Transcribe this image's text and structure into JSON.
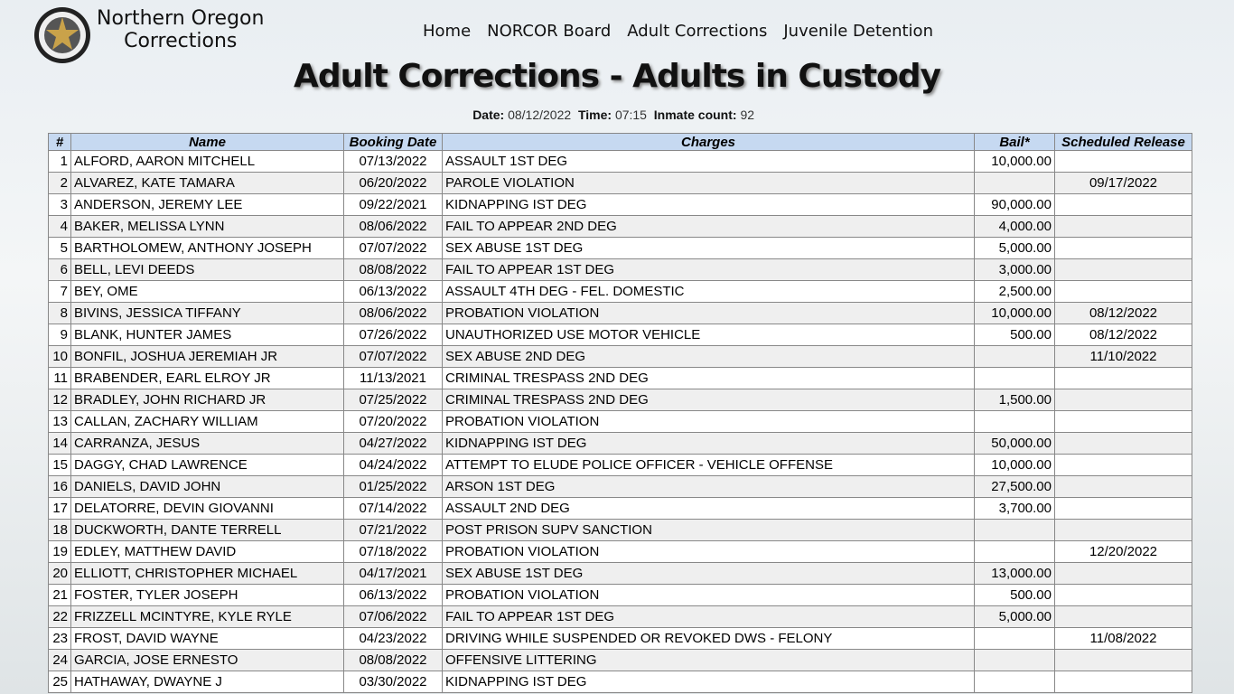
{
  "header": {
    "site_name": [
      "Northern Oregon",
      "Corrections"
    ],
    "nav": [
      "Home",
      "NORCOR Board",
      "Adult Corrections",
      "Juvenile Detention"
    ]
  },
  "title": "Adult Corrections - Adults in Custody",
  "meta": [
    {
      "label": "Date:",
      "value": "08/12/2022"
    },
    {
      "label": "Time:",
      "value": "07:15"
    },
    {
      "label": "Inmate count:",
      "value": "92"
    }
  ],
  "table": {
    "columns": [
      "#",
      "Name",
      "Booking Date",
      "Charges",
      "Bail*",
      "Scheduled Release"
    ],
    "rows": [
      [
        "1",
        "ALFORD, AARON MITCHELL",
        "07/13/2022",
        "ASSAULT 1ST DEG",
        "10,000.00",
        null
      ],
      [
        "2",
        "ALVAREZ, KATE TAMARA",
        "06/20/2022",
        "PAROLE VIOLATION",
        null,
        "09/17/2022"
      ],
      [
        "3",
        "ANDERSON, JEREMY LEE",
        "09/22/2021",
        "KIDNAPPING IST DEG",
        "90,000.00",
        null
      ],
      [
        "4",
        "BAKER, MELISSA LYNN",
        "08/06/2022",
        "FAIL TO APPEAR 2ND DEG",
        "4,000.00",
        null
      ],
      [
        "5",
        "BARTHOLOMEW, ANTHONY JOSEPH",
        "07/07/2022",
        "SEX ABUSE 1ST DEG",
        "5,000.00",
        null
      ],
      [
        "6",
        "BELL, LEVI DEEDS",
        "08/08/2022",
        "FAIL TO APPEAR 1ST DEG",
        "3,000.00",
        null
      ],
      [
        "7",
        "BEY, OME",
        "06/13/2022",
        "ASSAULT 4TH DEG - FEL. DOMESTIC",
        "2,500.00",
        null
      ],
      [
        "8",
        "BIVINS, JESSICA TIFFANY",
        "08/06/2022",
        "PROBATION VIOLATION",
        "10,000.00",
        "08/12/2022"
      ],
      [
        "9",
        "BLANK, HUNTER JAMES",
        "07/26/2022",
        "UNAUTHORIZED USE MOTOR VEHICLE",
        "500.00",
        "08/12/2022"
      ],
      [
        "10",
        "BONFIL, JOSHUA JEREMIAH JR",
        "07/07/2022",
        "SEX ABUSE 2ND DEG",
        null,
        "11/10/2022"
      ],
      [
        "11",
        "BRABENDER, EARL ELROY JR",
        "11/13/2021",
        "CRIMINAL TRESPASS 2ND DEG",
        null,
        null
      ],
      [
        "12",
        "BRADLEY, JOHN RICHARD JR",
        "07/25/2022",
        "CRIMINAL TRESPASS 2ND DEG",
        "1,500.00",
        null
      ],
      [
        "13",
        "CALLAN, ZACHARY WILLIAM",
        "07/20/2022",
        "PROBATION VIOLATION",
        null,
        null
      ],
      [
        "14",
        "CARRANZA, JESUS",
        "04/27/2022",
        "KIDNAPPING IST DEG",
        "50,000.00",
        null
      ],
      [
        "15",
        "DAGGY, CHAD LAWRENCE",
        "04/24/2022",
        "ATTEMPT TO ELUDE POLICE OFFICER - VEHICLE OFFENSE",
        "10,000.00",
        null
      ],
      [
        "16",
        "DANIELS, DAVID JOHN",
        "01/25/2022",
        "ARSON 1ST DEG",
        "27,500.00",
        null
      ],
      [
        "17",
        "DELATORRE, DEVIN GIOVANNI",
        "07/14/2022",
        "ASSAULT 2ND DEG",
        "3,700.00",
        null
      ],
      [
        "18",
        "DUCKWORTH, DANTE TERRELL",
        "07/21/2022",
        "POST PRISON SUPV SANCTION",
        null,
        null
      ],
      [
        "19",
        "EDLEY, MATTHEW DAVID",
        "07/18/2022",
        "PROBATION VIOLATION",
        null,
        "12/20/2022"
      ],
      [
        "20",
        "ELLIOTT, CHRISTOPHER MICHAEL",
        "04/17/2021",
        "SEX ABUSE 1ST DEG",
        "13,000.00",
        null
      ],
      [
        "21",
        "FOSTER, TYLER JOSEPH",
        "06/13/2022",
        "PROBATION VIOLATION",
        "500.00",
        null
      ],
      [
        "22",
        "FRIZZELL MCINTYRE, KYLE RYLE",
        "07/06/2022",
        "FAIL TO APPEAR 1ST DEG",
        "5,000.00",
        null
      ],
      [
        "23",
        "FROST, DAVID WAYNE",
        "04/23/2022",
        "DRIVING WHILE SUSPENDED OR REVOKED DWS - FELONY",
        null,
        "11/08/2022"
      ],
      [
        "24",
        "GARCIA, JOSE ERNESTO",
        "08/08/2022",
        "OFFENSIVE LITTERING",
        null,
        null
      ],
      [
        "25",
        "HATHAWAY, DWAYNE J",
        "03/30/2022",
        "KIDNAPPING IST DEG",
        null,
        null
      ]
    ]
  }
}
